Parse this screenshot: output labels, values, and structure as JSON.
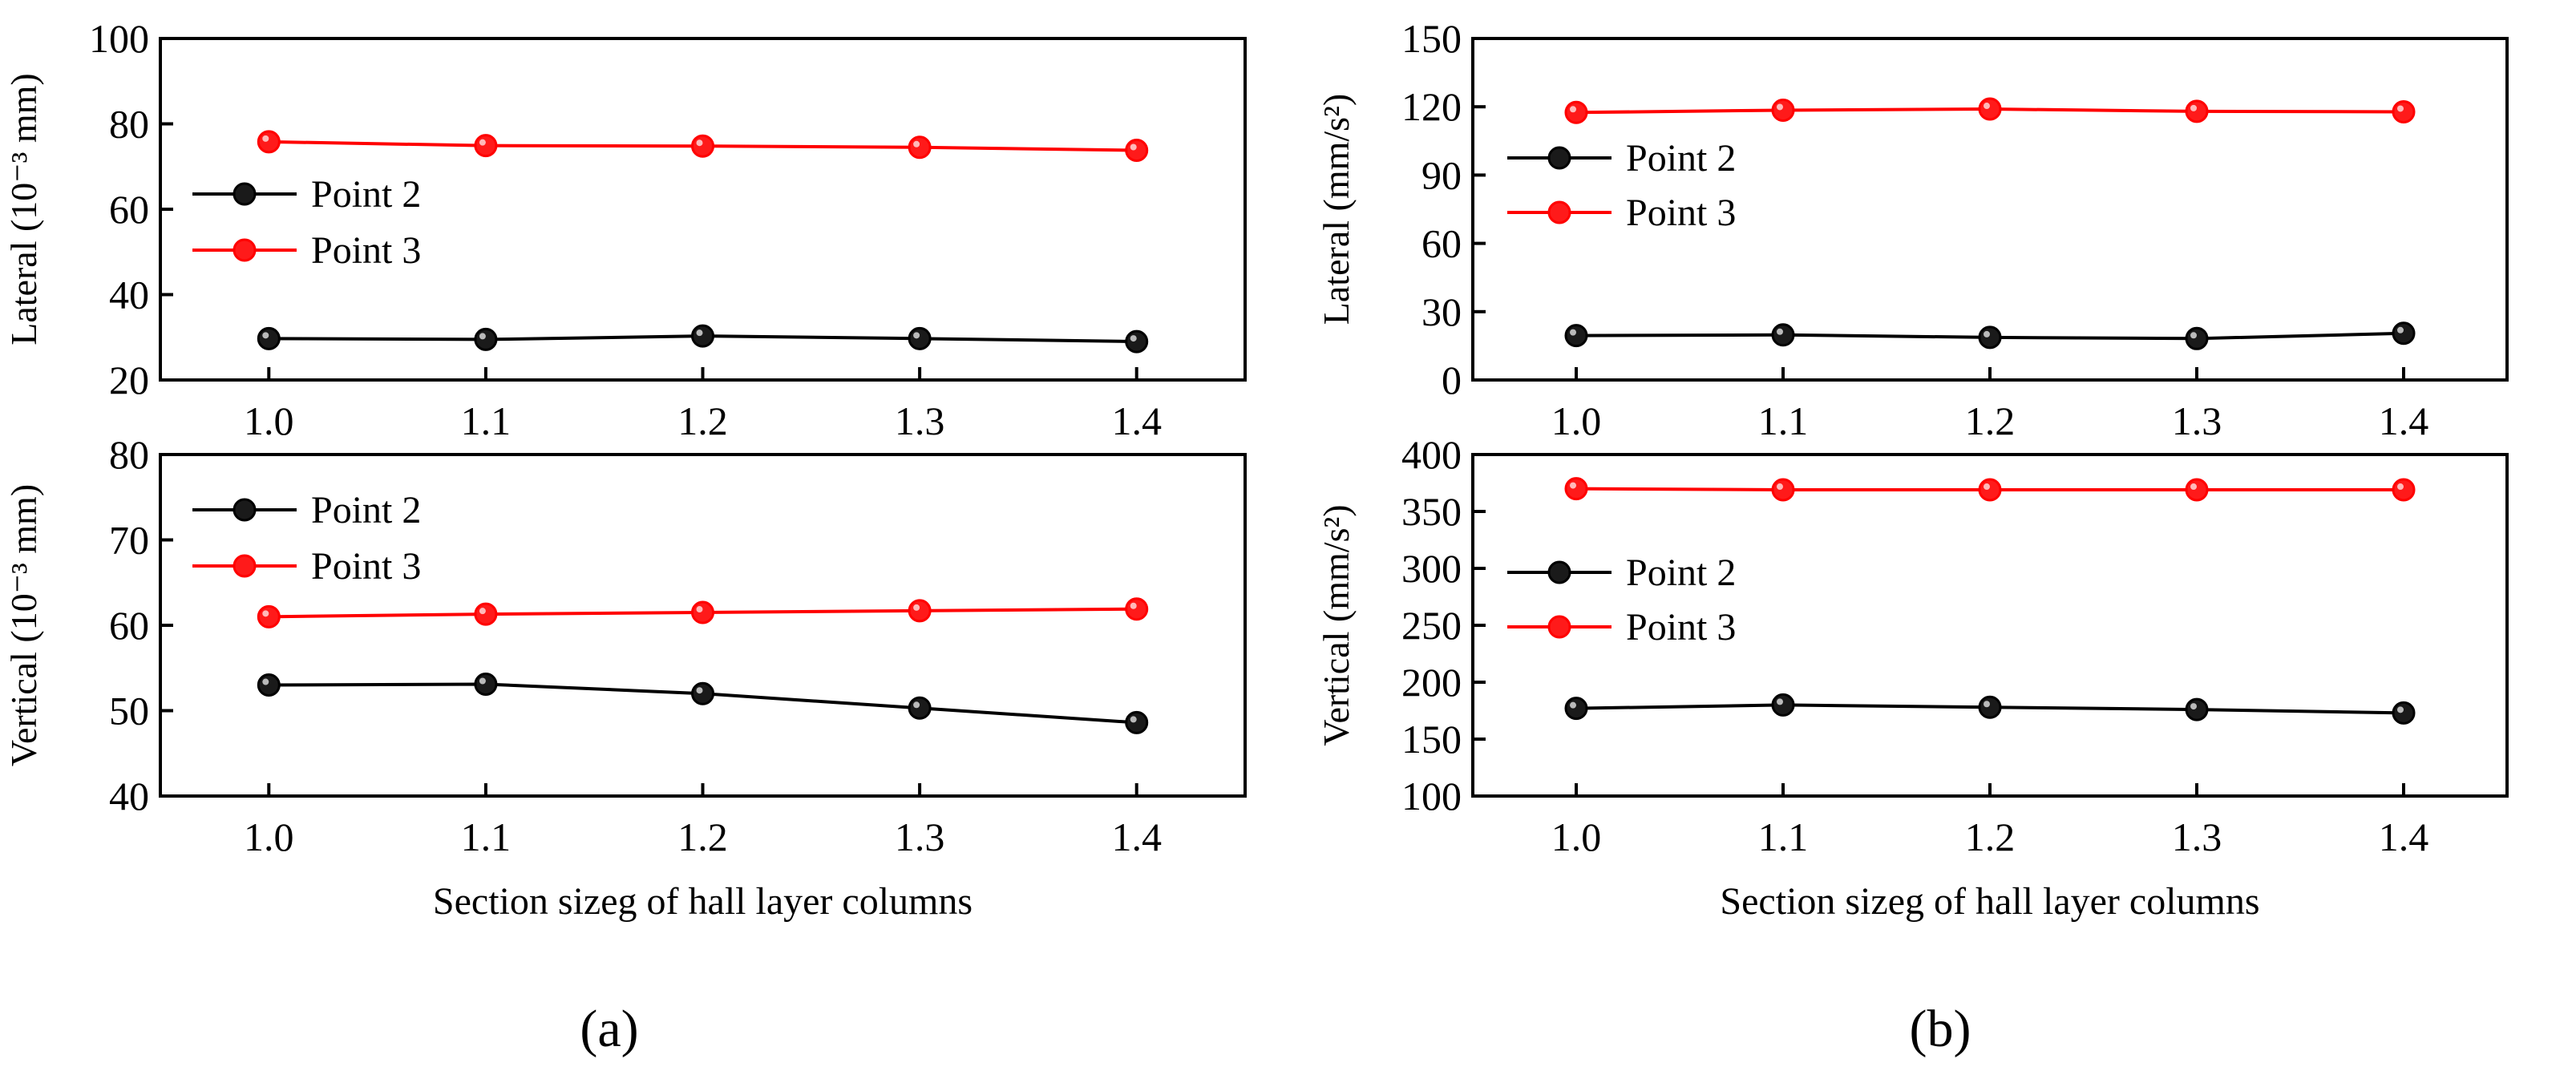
{
  "colors": {
    "point2": "#000000",
    "point3": "#ff0000",
    "point2_fill": "#1a1a1a",
    "point3_fill": "#ff1a1a"
  },
  "panel_labels": {
    "a": "(a)",
    "b": "(b)"
  },
  "chart_data": [
    {
      "id": "a-lateral",
      "type": "line",
      "panel": "a",
      "ylabel": "Lateral (10⁻³ mm)",
      "xlabel": "",
      "x": [
        1.0,
        1.1,
        1.2,
        1.3,
        1.4
      ],
      "x_ticks": [
        "1.0",
        "1.1",
        "1.2",
        "1.3",
        "1.4"
      ],
      "xlim": [
        0.95,
        1.45
      ],
      "ylim": [
        20,
        100
      ],
      "y_ticks": [
        20,
        40,
        60,
        80,
        100
      ],
      "legend_position": "middle-left",
      "grid": false,
      "series": [
        {
          "name": "Point 2",
          "values": [
            29.7,
            29.5,
            30.3,
            29.7,
            29.0
          ]
        },
        {
          "name": "Point 3",
          "values": [
            75.8,
            74.9,
            74.8,
            74.5,
            73.8
          ]
        }
      ]
    },
    {
      "id": "a-vertical",
      "type": "line",
      "panel": "a",
      "ylabel": "Vertical (10⁻³ mm)",
      "xlabel": "Section sizeg of hall layer columns",
      "x": [
        1.0,
        1.1,
        1.2,
        1.3,
        1.4
      ],
      "x_ticks": [
        "1.0",
        "1.1",
        "1.2",
        "1.3",
        "1.4"
      ],
      "xlim": [
        0.95,
        1.45
      ],
      "ylim": [
        40,
        80
      ],
      "y_ticks": [
        40,
        50,
        60,
        70,
        80
      ],
      "legend_position": "top-left",
      "grid": false,
      "series": [
        {
          "name": "Point 2",
          "values": [
            53.0,
            53.1,
            52.0,
            50.3,
            48.6
          ]
        },
        {
          "name": "Point 3",
          "values": [
            61.0,
            61.3,
            61.5,
            61.7,
            61.9
          ]
        }
      ]
    },
    {
      "id": "b-lateral",
      "type": "line",
      "panel": "b",
      "ylabel": "Lateral (mm/s²)",
      "xlabel": "",
      "x": [
        1.0,
        1.1,
        1.2,
        1.3,
        1.4
      ],
      "x_ticks": [
        "1.0",
        "1.1",
        "1.2",
        "1.3",
        "1.4"
      ],
      "xlim": [
        0.95,
        1.45
      ],
      "ylim": [
        0,
        150
      ],
      "y_ticks": [
        0,
        30,
        60,
        90,
        120,
        150
      ],
      "legend_position": "middle-left",
      "grid": false,
      "series": [
        {
          "name": "Point 2",
          "values": [
            19.5,
            19.8,
            18.7,
            18.2,
            20.5
          ]
        },
        {
          "name": "Point 3",
          "values": [
            117.5,
            118.5,
            119.0,
            118.0,
            117.8
          ]
        }
      ]
    },
    {
      "id": "b-vertical",
      "type": "line",
      "panel": "b",
      "ylabel": "Vertical (mm/s²)",
      "xlabel": "Section sizeg of hall layer columns",
      "x": [
        1.0,
        1.1,
        1.2,
        1.3,
        1.4
      ],
      "x_ticks": [
        "1.0",
        "1.1",
        "1.2",
        "1.3",
        "1.4"
      ],
      "xlim": [
        0.95,
        1.45
      ],
      "ylim": [
        100,
        400
      ],
      "y_ticks": [
        100,
        150,
        200,
        250,
        300,
        350,
        400
      ],
      "legend_position": "middle-left",
      "grid": false,
      "series": [
        {
          "name": "Point 2",
          "values": [
            177,
            180,
            178,
            176,
            173
          ]
        },
        {
          "name": "Point 3",
          "values": [
            370,
            369,
            369,
            369,
            369
          ]
        }
      ]
    }
  ]
}
